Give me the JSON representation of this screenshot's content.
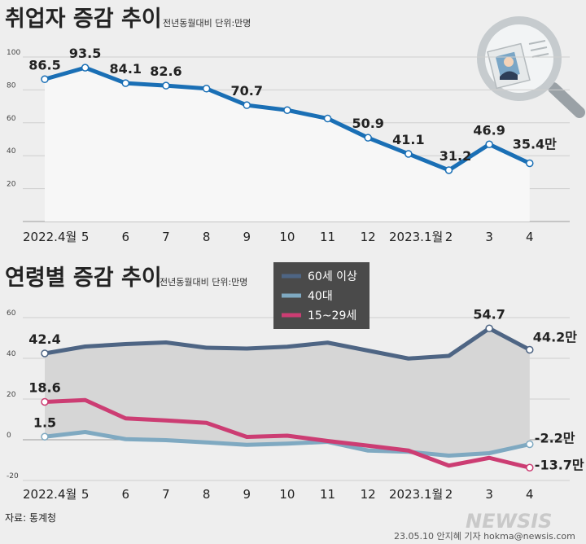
{
  "header": {
    "title1": "취업자 증감 추이",
    "subtitle1": "전년동월대비 단위:만명",
    "title2": "연령별 증감 추이",
    "subtitle2": "전년동월대비 단위:만명"
  },
  "footer": {
    "source": "자료: 통계청",
    "credit": "23.05.10 안지혜 기자  hokma@newsis.com",
    "logo": "NEWSIS"
  },
  "colors": {
    "total": "#1a6fb5",
    "age60": "#4e6584",
    "age40": "#7fa9c1",
    "age15_29": "#cc3d73",
    "area": "#d6d6d6"
  },
  "chart_data": [
    {
      "type": "line",
      "title": "취업자 증감 추이",
      "subtitle": "전년동월대비 단위:만명",
      "categories": [
        "2022.4월",
        "5",
        "6",
        "7",
        "8",
        "9",
        "10",
        "11",
        "12",
        "2023.1월",
        "2",
        "3",
        "4"
      ],
      "series": [
        {
          "values": [
            86.5,
            93.5,
            84.1,
            82.6,
            80.8,
            70.7,
            67.7,
            62.6,
            50.9,
            41.1,
            31.2,
            46.9,
            35.4
          ]
        }
      ],
      "labels": [
        {
          "index": 0,
          "text": "86.5"
        },
        {
          "index": 1,
          "text": "93.5"
        },
        {
          "index": 2,
          "text": "84.1"
        },
        {
          "index": 3,
          "text": "82.6"
        },
        {
          "index": 5,
          "text": "70.7"
        },
        {
          "index": 8,
          "text": "50.9"
        },
        {
          "index": 9,
          "text": "41.1"
        },
        {
          "index": 10,
          "text": "31.2"
        },
        {
          "index": 11,
          "text": "46.9"
        },
        {
          "index": 12,
          "text": "35.4만"
        }
      ],
      "yticks": [
        20,
        40,
        60,
        80,
        100
      ],
      "ylim": [
        0,
        105
      ],
      "grid": true
    },
    {
      "type": "line",
      "title": "연령별 증감 추이",
      "subtitle": "전년동월대비 단위:만명",
      "categories": [
        "2022.4월",
        "5",
        "6",
        "7",
        "8",
        "9",
        "10",
        "11",
        "12",
        "2023.1월",
        "2",
        "3",
        "4"
      ],
      "series": [
        {
          "name": "60세 이상",
          "values": [
            42.4,
            45.8,
            47.0,
            47.8,
            45.2,
            44.8,
            45.7,
            47.7,
            43.8,
            39.9,
            41.2,
            54.7,
            44.2
          ]
        },
        {
          "name": "40대",
          "values": [
            1.5,
            3.8,
            0.3,
            -0.2,
            -1.3,
            -2.5,
            -1.9,
            -1.0,
            -5.3,
            -5.9,
            -7.8,
            -6.6,
            -2.2
          ]
        },
        {
          "name": "15~29세",
          "values": [
            18.6,
            19.5,
            10.5,
            9.5,
            8.3,
            1.4,
            2.0,
            -0.6,
            -2.9,
            -5.3,
            -12.7,
            -8.9,
            -13.7
          ]
        }
      ],
      "labels": [
        {
          "series": 0,
          "index": 0,
          "text": "42.4"
        },
        {
          "series": 0,
          "index": 11,
          "text": "54.7"
        },
        {
          "series": 0,
          "index": 12,
          "text": "44.2만"
        },
        {
          "series": 1,
          "index": 0,
          "text": "1.5"
        },
        {
          "series": 1,
          "index": 12,
          "text": "-2.2만"
        },
        {
          "series": 2,
          "index": 0,
          "text": "18.6"
        },
        {
          "series": 2,
          "index": 12,
          "text": "-13.7만"
        }
      ],
      "legend": "top-center",
      "yticks": [
        -20,
        0,
        20,
        40,
        60
      ],
      "ylim": [
        -22,
        65
      ],
      "grid": true
    }
  ]
}
